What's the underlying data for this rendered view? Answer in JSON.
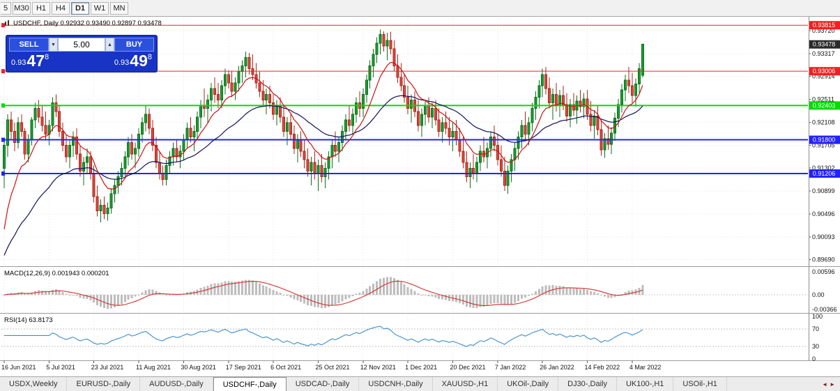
{
  "toolbar": {
    "timeframes": [
      "5",
      "M30",
      "H1",
      "H4",
      "D1",
      "W1",
      "MN"
    ],
    "active": "D1"
  },
  "icons": {
    "dropdown_down": "▼",
    "spin_up": "▲",
    "tab_scroll_left": "◄",
    "tab_scroll_right": "►"
  },
  "trade": {
    "sell_label": "SELL",
    "buy_label": "BUY",
    "volume": "5.00",
    "sell": {
      "base": "0.93",
      "big": "47",
      "sup": "8"
    },
    "buy": {
      "base": "0.93",
      "big": "49",
      "sup": "8"
    }
  },
  "colors": {
    "up_fill": "#1ba02c",
    "up_stroke": "#0b6e1d",
    "down_fill": "#e2483c",
    "down_stroke": "#a8271c",
    "ma_fast": "#cc1111",
    "ma_slow": "#101060",
    "macd_hist": "#bdbdbd",
    "macd_signal": "#d32f2f",
    "rsi_line": "#3b8ed0",
    "grid": "#e3e3e3",
    "level_red": "#f02020",
    "level_green": "#00dd00",
    "level_blue": "#2222ff",
    "current_box": "#2b2b2b"
  },
  "chart_data": {
    "type": "candlestick",
    "title": "USDCHF, Daily",
    "title_line": "USDCHF, Daily  0.92932 0.93490 0.92897 0.93478",
    "current_bar": {
      "open": 0.92932,
      "high": 0.9349,
      "low": 0.92897,
      "close": 0.93478
    },
    "y_axis": [
      0.9372,
      0.93317,
      0.92914,
      0.92511,
      0.92108,
      0.91705,
      0.91302,
      0.90899,
      0.90496,
      0.90093,
      0.8969
    ],
    "x_labels": [
      {
        "i": 0,
        "t": "16 Jun 2021"
      },
      {
        "i": 13,
        "t": "5 Jul 2021"
      },
      {
        "i": 26,
        "t": "23 Jul 2021"
      },
      {
        "i": 39,
        "t": "11 Aug 2021"
      },
      {
        "i": 52,
        "t": "30 Aug 2021"
      },
      {
        "i": 65,
        "t": "17 Sep 2021"
      },
      {
        "i": 78,
        "t": "6 Oct 2021"
      },
      {
        "i": 91,
        "t": "25 Oct 2021"
      },
      {
        "i": 104,
        "t": "12 Nov 2021"
      },
      {
        "i": 117,
        "t": "1 Dec 2021"
      },
      {
        "i": 130,
        "t": "20 Dec 2021"
      },
      {
        "i": 143,
        "t": "7 Jan 2022"
      },
      {
        "i": 156,
        "t": "26 Jan 2022"
      },
      {
        "i": 169,
        "t": "14 Feb 2022"
      },
      {
        "i": 182,
        "t": "4 Mar 2022"
      }
    ],
    "hlines": [
      {
        "price": 0.93815,
        "label": "0.93815",
        "color_key": "level_red",
        "width": 1
      },
      {
        "price": 0.93006,
        "label": "0.93006",
        "color_key": "level_red",
        "width": 1
      },
      {
        "price": 0.92403,
        "label": "0.92403",
        "color_key": "level_green",
        "width": 2
      },
      {
        "price": 0.918,
        "label": "0.91800",
        "color_key": "level_blue",
        "width": 2
      },
      {
        "price": 0.91206,
        "label": "0.91206",
        "color_key": "level_blue",
        "width": 2
      }
    ],
    "current_price": {
      "price": 0.93478,
      "label": "0.93478"
    },
    "indicators": [
      {
        "name": "MACD",
        "label": "MACD(12,26,9) 0.001943 0.000201",
        "params": [
          12,
          26,
          9
        ],
        "values": [
          0.001943,
          0.000201
        ],
        "scale_labels": [
          "0.00596",
          "0.00",
          "-0.00366"
        ]
      },
      {
        "name": "RSI",
        "label": "RSI(14) 63.8173",
        "period": 14,
        "value": 63.8173,
        "scale_labels": [
          "100",
          "70",
          "30",
          "0"
        ],
        "levels": [
          70,
          30
        ]
      }
    ],
    "ohlc": [
      [
        0.913,
        0.918,
        0.9095,
        0.917
      ],
      [
        0.917,
        0.9225,
        0.915,
        0.9215
      ],
      [
        0.9215,
        0.923,
        0.918,
        0.9195
      ],
      [
        0.9195,
        0.921,
        0.916,
        0.9175
      ],
      [
        0.9175,
        0.922,
        0.9165,
        0.921
      ],
      [
        0.921,
        0.9225,
        0.9185,
        0.9195
      ],
      [
        0.9195,
        0.92,
        0.9145,
        0.9155
      ],
      [
        0.9155,
        0.919,
        0.914,
        0.918
      ],
      [
        0.918,
        0.922,
        0.917,
        0.9215
      ],
      [
        0.9215,
        0.9245,
        0.92,
        0.9235
      ],
      [
        0.9235,
        0.925,
        0.921,
        0.922
      ],
      [
        0.922,
        0.924,
        0.9195,
        0.9205
      ],
      [
        0.9205,
        0.923,
        0.918,
        0.919
      ],
      [
        0.919,
        0.9215,
        0.917,
        0.9205
      ],
      [
        0.9205,
        0.9255,
        0.9195,
        0.9245
      ],
      [
        0.9245,
        0.926,
        0.922,
        0.923
      ],
      [
        0.923,
        0.924,
        0.9185,
        0.9195
      ],
      [
        0.9195,
        0.921,
        0.916,
        0.917
      ],
      [
        0.917,
        0.919,
        0.914,
        0.915
      ],
      [
        0.915,
        0.918,
        0.913,
        0.917
      ],
      [
        0.917,
        0.9195,
        0.915,
        0.9185
      ],
      [
        0.9185,
        0.92,
        0.9145,
        0.9155
      ],
      [
        0.9155,
        0.917,
        0.9115,
        0.9125
      ],
      [
        0.9125,
        0.915,
        0.91,
        0.914
      ],
      [
        0.914,
        0.9165,
        0.912,
        0.915
      ],
      [
        0.915,
        0.916,
        0.911,
        0.912
      ],
      [
        0.912,
        0.9135,
        0.907,
        0.908
      ],
      [
        0.908,
        0.91,
        0.9045,
        0.9055
      ],
      [
        0.9055,
        0.9075,
        0.9035,
        0.9065
      ],
      [
        0.9065,
        0.908,
        0.904,
        0.905
      ],
      [
        0.905,
        0.907,
        0.9038,
        0.906
      ],
      [
        0.906,
        0.9095,
        0.905,
        0.9085
      ],
      [
        0.9085,
        0.911,
        0.907,
        0.91
      ],
      [
        0.91,
        0.9125,
        0.9085,
        0.9115
      ],
      [
        0.9115,
        0.914,
        0.91,
        0.913
      ],
      [
        0.913,
        0.916,
        0.9115,
        0.915
      ],
      [
        0.915,
        0.9185,
        0.9135,
        0.9175
      ],
      [
        0.9175,
        0.919,
        0.9145,
        0.9155
      ],
      [
        0.9155,
        0.9175,
        0.913,
        0.9165
      ],
      [
        0.9165,
        0.92,
        0.915,
        0.919
      ],
      [
        0.919,
        0.922,
        0.9175,
        0.921
      ],
      [
        0.921,
        0.924,
        0.9195,
        0.9225
      ],
      [
        0.9225,
        0.9235,
        0.919,
        0.92
      ],
      [
        0.92,
        0.9215,
        0.916,
        0.917
      ],
      [
        0.917,
        0.9185,
        0.913,
        0.914
      ],
      [
        0.914,
        0.916,
        0.911,
        0.912
      ],
      [
        0.912,
        0.9135,
        0.91,
        0.911
      ],
      [
        0.911,
        0.9145,
        0.91,
        0.9135
      ],
      [
        0.9135,
        0.916,
        0.912,
        0.915
      ],
      [
        0.915,
        0.9175,
        0.9135,
        0.9165
      ],
      [
        0.9165,
        0.918,
        0.914,
        0.915
      ],
      [
        0.915,
        0.917,
        0.913,
        0.916
      ],
      [
        0.916,
        0.919,
        0.9145,
        0.918
      ],
      [
        0.918,
        0.921,
        0.9165,
        0.92
      ],
      [
        0.92,
        0.922,
        0.9175,
        0.9185
      ],
      [
        0.9185,
        0.9205,
        0.916,
        0.9195
      ],
      [
        0.9195,
        0.923,
        0.918,
        0.922
      ],
      [
        0.922,
        0.925,
        0.92,
        0.924
      ],
      [
        0.924,
        0.927,
        0.922,
        0.9235
      ],
      [
        0.9235,
        0.926,
        0.921,
        0.925
      ],
      [
        0.925,
        0.928,
        0.923,
        0.927
      ],
      [
        0.927,
        0.929,
        0.9245,
        0.926
      ],
      [
        0.926,
        0.928,
        0.9235,
        0.925
      ],
      [
        0.925,
        0.9285,
        0.9235,
        0.9275
      ],
      [
        0.9275,
        0.9305,
        0.926,
        0.9295
      ],
      [
        0.9295,
        0.9302,
        0.927,
        0.928
      ],
      [
        0.928,
        0.93,
        0.9255,
        0.9265
      ],
      [
        0.9265,
        0.929,
        0.925,
        0.928
      ],
      [
        0.928,
        0.931,
        0.9265,
        0.93
      ],
      [
        0.93,
        0.932,
        0.928,
        0.931
      ],
      [
        0.931,
        0.9335,
        0.929,
        0.9325
      ],
      [
        0.9325,
        0.9333,
        0.9295,
        0.9305
      ],
      [
        0.9305,
        0.933,
        0.9285,
        0.9295
      ],
      [
        0.9295,
        0.9315,
        0.927,
        0.928
      ],
      [
        0.928,
        0.93,
        0.9255,
        0.9265
      ],
      [
        0.9265,
        0.9285,
        0.924,
        0.925
      ],
      [
        0.925,
        0.927,
        0.9225,
        0.926
      ],
      [
        0.926,
        0.9275,
        0.9235,
        0.9245
      ],
      [
        0.9245,
        0.926,
        0.9215,
        0.9225
      ],
      [
        0.9225,
        0.925,
        0.9205,
        0.924
      ],
      [
        0.924,
        0.9255,
        0.921,
        0.922
      ],
      [
        0.922,
        0.924,
        0.9185,
        0.9195
      ],
      [
        0.9195,
        0.922,
        0.917,
        0.921
      ],
      [
        0.921,
        0.9225,
        0.918,
        0.919
      ],
      [
        0.919,
        0.9205,
        0.9155,
        0.9165
      ],
      [
        0.9165,
        0.919,
        0.914,
        0.918
      ],
      [
        0.918,
        0.9195,
        0.915,
        0.916
      ],
      [
        0.916,
        0.918,
        0.913,
        0.9145
      ],
      [
        0.9145,
        0.9165,
        0.9115,
        0.9125
      ],
      [
        0.9125,
        0.915,
        0.91,
        0.914
      ],
      [
        0.914,
        0.916,
        0.911,
        0.912
      ],
      [
        0.912,
        0.9145,
        0.909,
        0.9135
      ],
      [
        0.9135,
        0.9155,
        0.9105,
        0.9115
      ],
      [
        0.9115,
        0.914,
        0.9095,
        0.913
      ],
      [
        0.913,
        0.916,
        0.911,
        0.915
      ],
      [
        0.915,
        0.918,
        0.913,
        0.917
      ],
      [
        0.917,
        0.9195,
        0.915,
        0.916
      ],
      [
        0.916,
        0.9185,
        0.914,
        0.9175
      ],
      [
        0.9175,
        0.9205,
        0.916,
        0.9195
      ],
      [
        0.9195,
        0.9225,
        0.918,
        0.9215
      ],
      [
        0.9215,
        0.924,
        0.9195,
        0.9205
      ],
      [
        0.9205,
        0.9235,
        0.919,
        0.9225
      ],
      [
        0.9225,
        0.9255,
        0.921,
        0.9245
      ],
      [
        0.9245,
        0.9265,
        0.922,
        0.9235
      ],
      [
        0.9235,
        0.927,
        0.922,
        0.926
      ],
      [
        0.926,
        0.9295,
        0.9245,
        0.9285
      ],
      [
        0.9285,
        0.932,
        0.927,
        0.931
      ],
      [
        0.931,
        0.934,
        0.929,
        0.933
      ],
      [
        0.933,
        0.936,
        0.9315,
        0.935
      ],
      [
        0.935,
        0.9374,
        0.933,
        0.9365
      ],
      [
        0.9365,
        0.9371,
        0.9335,
        0.9345
      ],
      [
        0.9345,
        0.9368,
        0.932,
        0.9355
      ],
      [
        0.9355,
        0.937,
        0.933,
        0.934
      ],
      [
        0.934,
        0.9355,
        0.93,
        0.931
      ],
      [
        0.931,
        0.933,
        0.928,
        0.929
      ],
      [
        0.929,
        0.9315,
        0.9265,
        0.9275
      ],
      [
        0.9275,
        0.9295,
        0.9245,
        0.9255
      ],
      [
        0.9255,
        0.9275,
        0.9225,
        0.9235
      ],
      [
        0.9235,
        0.926,
        0.921,
        0.925
      ],
      [
        0.925,
        0.9265,
        0.922,
        0.923
      ],
      [
        0.923,
        0.925,
        0.9195,
        0.9205
      ],
      [
        0.9205,
        0.9235,
        0.9185,
        0.9225
      ],
      [
        0.9225,
        0.925,
        0.9205,
        0.924
      ],
      [
        0.924,
        0.9255,
        0.921,
        0.922
      ],
      [
        0.922,
        0.9245,
        0.92,
        0.9235
      ],
      [
        0.9235,
        0.925,
        0.9205,
        0.9215
      ],
      [
        0.9215,
        0.9235,
        0.9185,
        0.9195
      ],
      [
        0.9195,
        0.922,
        0.9175,
        0.921
      ],
      [
        0.921,
        0.923,
        0.919,
        0.92
      ],
      [
        0.92,
        0.922,
        0.917,
        0.9185
      ],
      [
        0.9185,
        0.921,
        0.916,
        0.9195
      ],
      [
        0.9195,
        0.9215,
        0.917,
        0.918
      ],
      [
        0.918,
        0.92,
        0.915,
        0.916
      ],
      [
        0.916,
        0.9185,
        0.913,
        0.914
      ],
      [
        0.914,
        0.916,
        0.9105,
        0.9115
      ],
      [
        0.9115,
        0.914,
        0.9095,
        0.913
      ],
      [
        0.913,
        0.9155,
        0.911,
        0.912
      ],
      [
        0.912,
        0.915,
        0.9105,
        0.914
      ],
      [
        0.914,
        0.917,
        0.9125,
        0.916
      ],
      [
        0.916,
        0.9185,
        0.914,
        0.915
      ],
      [
        0.915,
        0.9175,
        0.913,
        0.9165
      ],
      [
        0.9165,
        0.9195,
        0.915,
        0.9185
      ],
      [
        0.9185,
        0.9205,
        0.916,
        0.917
      ],
      [
        0.917,
        0.919,
        0.9135,
        0.9145
      ],
      [
        0.9145,
        0.917,
        0.9115,
        0.9125
      ],
      [
        0.9125,
        0.915,
        0.909,
        0.91
      ],
      [
        0.91,
        0.9135,
        0.9085,
        0.9125
      ],
      [
        0.9125,
        0.9155,
        0.9105,
        0.9145
      ],
      [
        0.9145,
        0.9175,
        0.9125,
        0.9165
      ],
      [
        0.9165,
        0.9195,
        0.9145,
        0.9185
      ],
      [
        0.9185,
        0.9215,
        0.9165,
        0.9205
      ],
      [
        0.9205,
        0.923,
        0.918,
        0.919
      ],
      [
        0.919,
        0.922,
        0.917,
        0.921
      ],
      [
        0.921,
        0.9245,
        0.9195,
        0.9235
      ],
      [
        0.9235,
        0.9265,
        0.9215,
        0.9255
      ],
      [
        0.9255,
        0.9285,
        0.9235,
        0.9275
      ],
      [
        0.9275,
        0.9305,
        0.9255,
        0.9295
      ],
      [
        0.9295,
        0.9308,
        0.926,
        0.927
      ],
      [
        0.927,
        0.929,
        0.9235,
        0.9245
      ],
      [
        0.9245,
        0.927,
        0.9215,
        0.926
      ],
      [
        0.926,
        0.928,
        0.923,
        0.924
      ],
      [
        0.924,
        0.9268,
        0.922,
        0.9258
      ],
      [
        0.9258,
        0.9275,
        0.9232,
        0.9242
      ],
      [
        0.9242,
        0.9262,
        0.9212,
        0.9222
      ],
      [
        0.9222,
        0.9252,
        0.9202,
        0.9242
      ],
      [
        0.9242,
        0.9262,
        0.9222,
        0.9232
      ],
      [
        0.9232,
        0.9258,
        0.9208,
        0.9248
      ],
      [
        0.9248,
        0.9268,
        0.9228,
        0.9238
      ],
      [
        0.9238,
        0.9262,
        0.9218,
        0.9252
      ],
      [
        0.9252,
        0.9268,
        0.9215,
        0.9225
      ],
      [
        0.9225,
        0.9248,
        0.9195,
        0.9205
      ],
      [
        0.9205,
        0.9232,
        0.9182,
        0.9222
      ],
      [
        0.9222,
        0.924,
        0.9188,
        0.9198
      ],
      [
        0.9198,
        0.9215,
        0.9152,
        0.9162
      ],
      [
        0.9162,
        0.9192,
        0.9148,
        0.9182
      ],
      [
        0.9182,
        0.9205,
        0.9162,
        0.9172
      ],
      [
        0.9172,
        0.9202,
        0.9155,
        0.9192
      ],
      [
        0.9192,
        0.9228,
        0.9178,
        0.9218
      ],
      [
        0.9218,
        0.9252,
        0.9202,
        0.9242
      ],
      [
        0.9242,
        0.9278,
        0.9228,
        0.9268
      ],
      [
        0.9268,
        0.9295,
        0.9248,
        0.9285
      ],
      [
        0.9285,
        0.9308,
        0.9262,
        0.9275
      ],
      [
        0.9275,
        0.9298,
        0.9245,
        0.9258
      ],
      [
        0.9258,
        0.9288,
        0.9238,
        0.9278
      ],
      [
        0.9278,
        0.9315,
        0.9262,
        0.9305
      ],
      [
        0.92932,
        0.9349,
        0.92897,
        0.93478
      ]
    ]
  },
  "tabs": {
    "items": [
      "USDX,Weekly",
      "EURUSD-,Daily",
      "AUDUSD-,Daily",
      "USDCHF-,Daily",
      "USDCAD-,Daily",
      "USDCNH-,Daily",
      "XAUUSD-,H1",
      "UKOil-,Daily",
      "DJ30-,Daily",
      "UK100-,H1",
      "USOil-,H1"
    ],
    "active_index": 3
  }
}
